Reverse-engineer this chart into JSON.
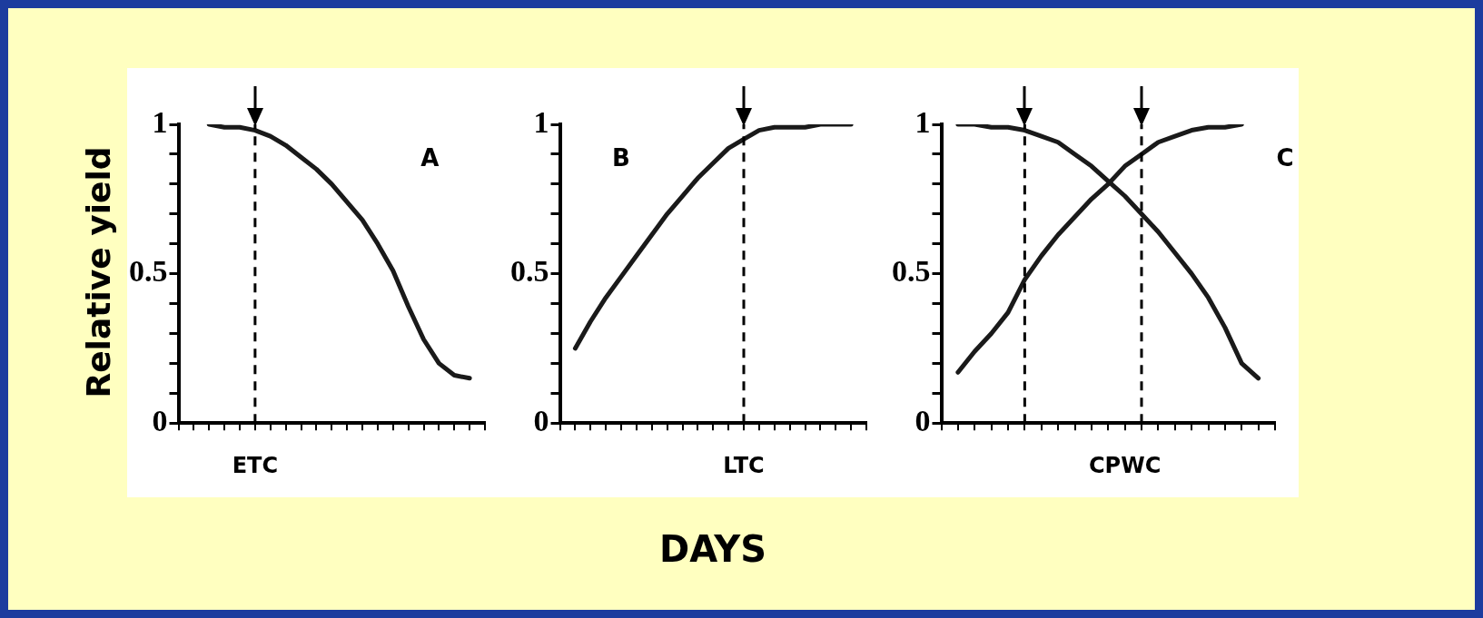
{
  "chart_data": [
    {
      "type": "line",
      "ylabel": "Relative yield",
      "annotations": [
        "A"
      ],
      "categories": [
        null,
        null,
        null,
        null,
        null,
        "ETC",
        null,
        null,
        null,
        null,
        null,
        null,
        null,
        null,
        null,
        null,
        null,
        null,
        null,
        null,
        null
      ],
      "ylim": [
        0,
        1
      ],
      "yticks": [
        0,
        {
          "value": 0.1,
          "label": null
        },
        {
          "value": 0.2,
          "label": null
        },
        {
          "value": 0.3,
          "label": null
        },
        {
          "value": 0.4,
          "label": null
        },
        0.5,
        {
          "value": 0.6,
          "label": null
        },
        {
          "value": 0.7,
          "label": null
        },
        {
          "value": 0.8,
          "label": null
        },
        {
          "value": 0.9,
          "label": null
        },
        1
      ],
      "grid": false,
      "legend": false,
      "marker": "none",
      "line_style": "solid",
      "ref_lines": [
        {
          "axis": "x",
          "value": "ETC",
          "color": "#000000",
          "line_style": "dashed"
        }
      ],
      "series": [
        {
          "color": "#1a1a1a",
          "values": [
            null,
            null,
            1.0,
            0.99,
            0.99,
            0.98,
            0.96,
            0.93,
            0.89,
            0.85,
            0.8,
            0.74,
            0.68,
            0.6,
            0.51,
            0.39,
            0.28,
            0.2,
            0.16,
            0.15,
            null
          ]
        }
      ]
    },
    {
      "type": "line",
      "xlabel": "DAYS",
      "annotations": [
        "B"
      ],
      "categories": [
        null,
        null,
        null,
        null,
        null,
        null,
        null,
        null,
        null,
        null,
        null,
        null,
        "LTC",
        null,
        null,
        null,
        null,
        null,
        null,
        null,
        null
      ],
      "ylim": [
        0,
        1
      ],
      "yticks": [
        0,
        {
          "value": 0.1,
          "label": null
        },
        {
          "value": 0.2,
          "label": null
        },
        {
          "value": 0.3,
          "label": null
        },
        {
          "value": 0.4,
          "label": null
        },
        0.5,
        {
          "value": 0.6,
          "label": null
        },
        {
          "value": 0.7,
          "label": null
        },
        {
          "value": 0.8,
          "label": null
        },
        {
          "value": 0.9,
          "label": null
        },
        1
      ],
      "grid": false,
      "legend": false,
      "marker": "none",
      "line_style": "solid",
      "ref_lines": [
        {
          "axis": "x",
          "value": "LTC",
          "color": "#000000",
          "line_style": "dashed"
        }
      ],
      "series": [
        {
          "color": "#1a1a1a",
          "values": [
            null,
            0.25,
            0.34,
            0.42,
            0.49,
            0.56,
            0.63,
            0.7,
            0.76,
            0.82,
            0.87,
            0.92,
            0.95,
            0.98,
            0.99,
            0.99,
            0.99,
            1.0,
            1.0,
            1.0,
            null
          ]
        }
      ]
    },
    {
      "type": "line",
      "annotations": [
        "C"
      ],
      "categories": [
        null,
        null,
        null,
        null,
        null,
        null,
        null,
        null,
        null,
        null,
        null,
        "CPWC",
        null,
        null,
        null,
        null,
        null,
        null,
        null,
        null,
        null
      ],
      "ylim": [
        0,
        1
      ],
      "yticks": [
        0,
        {
          "value": 0.1,
          "label": null
        },
        {
          "value": 0.2,
          "label": null
        },
        {
          "value": 0.3,
          "label": null
        },
        {
          "value": 0.4,
          "label": null
        },
        0.5,
        {
          "value": 0.6,
          "label": null
        },
        {
          "value": 0.7,
          "label": null
        },
        {
          "value": 0.8,
          "label": null
        },
        {
          "value": 0.9,
          "label": null
        },
        1
      ],
      "grid": false,
      "legend": false,
      "marker": "none",
      "line_style": "solid",
      "series": [
        {
          "color": "#1a1a1a",
          "values": [
            null,
            1.0,
            1.0,
            0.99,
            0.99,
            0.98,
            0.96,
            0.94,
            0.9,
            0.86,
            0.81,
            0.76,
            0.7,
            0.64,
            0.57,
            0.5,
            0.42,
            0.32,
            0.2,
            0.15,
            null
          ]
        },
        {
          "color": "#1a1a1a",
          "values": [
            null,
            0.17,
            0.24,
            0.3,
            0.37,
            0.48,
            0.56,
            0.63,
            0.69,
            0.75,
            0.8,
            0.86,
            0.9,
            0.94,
            0.96,
            0.98,
            0.99,
            0.99,
            1.0,
            null,
            null
          ]
        }
      ]
    }
  ]
}
